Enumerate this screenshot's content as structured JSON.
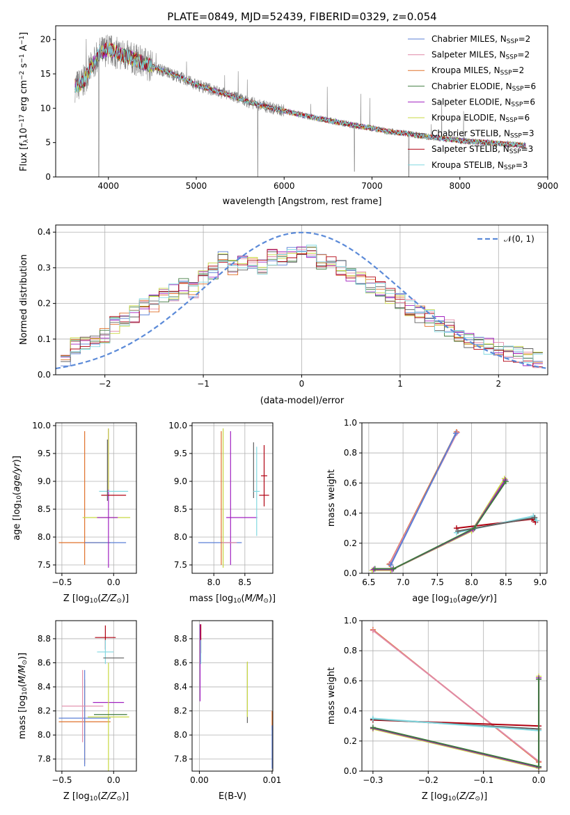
{
  "title": "PLATE=0849, MJD=52439, FIBERID=0329, z=0.054",
  "colors": {
    "chabrier_miles": "#5b7fd6",
    "salpeter_miles": "#e08aa8",
    "kroupa_miles": "#e0702a",
    "chabrier_elodie": "#3f7a3f",
    "salpeter_elodie": "#a020c0",
    "kroupa_elodie": "#c8d840",
    "chabrier_stelib": "#606060",
    "salpeter_stelib": "#b00010",
    "kroupa_stelib": "#80d8e0",
    "data": "#808080",
    "normal": "#5b8ad8"
  },
  "chart_data": [
    {
      "type": "line",
      "title": "PLATE=0849, MJD=52439, FIBERID=0329, z=0.054",
      "xlabel": "wavelength [Angstrom, rest frame]",
      "ylabel": "Flux [fλ10⁻¹⁷ erg cm⁻² s⁻¹ A⁻¹]",
      "xlim": [
        3400,
        9000
      ],
      "ylim": [
        0,
        22
      ],
      "xticks": [
        4000,
        5000,
        6000,
        7000,
        8000,
        9000
      ],
      "yticks": [
        0,
        5,
        10,
        15,
        20
      ],
      "grid": false,
      "legend_position": "top-right",
      "legend": [
        "Chabrier MILES, N_SSP=2",
        "Salpeter MILES, N_SSP=2",
        "Kroupa MILES, N_SSP=2",
        "Chabrier ELODIE, N_SSP=6",
        "Salpeter ELODIE, N_SSP=6",
        "Kroupa ELODIE, N_SSP=6",
        "Chabrier STELIB, N_SSP=3",
        "Salpeter STELIB, N_SSP=3",
        "Kroupa STELIB, N_SSP=3"
      ],
      "continuum": {
        "x": [
          3620,
          3700,
          3800,
          3900,
          4000,
          4100,
          4200,
          4400,
          4600,
          4800,
          5000,
          5200,
          5400,
          5600,
          5800,
          6000,
          6200,
          6400,
          6600,
          6800,
          7000,
          7200,
          7400,
          7600,
          7800,
          8000,
          8200,
          8400,
          8600,
          8750
        ],
        "y": [
          13.2,
          13.6,
          15.8,
          18.0,
          18.6,
          18.0,
          17.6,
          16.6,
          15.6,
          14.6,
          13.4,
          12.6,
          11.8,
          10.9,
          10.2,
          9.6,
          9.0,
          8.5,
          8.0,
          7.5,
          7.1,
          6.6,
          6.3,
          5.9,
          5.6,
          5.3,
          5.1,
          4.9,
          4.7,
          4.6
        ]
      },
      "absorption_dips": [
        {
          "x": 3890,
          "y": 0
        },
        {
          "x": 5700,
          "y": 0
        },
        {
          "x": 6800,
          "y": 0.8
        },
        {
          "x": 7420,
          "y": 0
        }
      ]
    },
    {
      "type": "line",
      "xlabel": "(data-model)/error",
      "ylabel": "Normed distribution",
      "xlim": [
        -2.5,
        2.5
      ],
      "ylim": [
        0,
        0.42
      ],
      "xticks": [
        -2,
        -1,
        0,
        1,
        2
      ],
      "yticks": [
        0.0,
        0.1,
        0.2,
        0.3,
        0.4
      ],
      "grid": true,
      "legend_position": "top-right",
      "legend": [
        "N(0,1)"
      ],
      "histogram_centers": [
        -2.4,
        -2.3,
        -2.2,
        -2.1,
        -2.0,
        -1.9,
        -1.8,
        -1.7,
        -1.6,
        -1.5,
        -1.4,
        -1.3,
        -1.2,
        -1.1,
        -1.0,
        -0.9,
        -0.8,
        -0.7,
        -0.6,
        -0.5,
        -0.4,
        -0.3,
        -0.2,
        -0.1,
        0.0,
        0.1,
        0.2,
        0.3,
        0.4,
        0.5,
        0.6,
        0.7,
        0.8,
        0.9,
        1.0,
        1.1,
        1.2,
        1.3,
        1.4,
        1.5,
        1.6,
        1.7,
        1.8,
        1.9,
        2.0,
        2.1,
        2.2,
        2.3,
        2.4
      ],
      "histogram_mean": [
        0.05,
        0.08,
        0.09,
        0.1,
        0.11,
        0.14,
        0.16,
        0.17,
        0.19,
        0.2,
        0.22,
        0.23,
        0.25,
        0.24,
        0.27,
        0.29,
        0.33,
        0.3,
        0.31,
        0.32,
        0.3,
        0.33,
        0.32,
        0.34,
        0.36,
        0.34,
        0.32,
        0.33,
        0.3,
        0.28,
        0.27,
        0.25,
        0.24,
        0.22,
        0.21,
        0.19,
        0.17,
        0.16,
        0.14,
        0.13,
        0.11,
        0.1,
        0.09,
        0.08,
        0.07,
        0.06,
        0.06,
        0.05,
        0.04
      ],
      "histogram_spread": 0.025,
      "normal_curve": {
        "mu": 0,
        "sigma": 1
      }
    },
    {
      "type": "scatter",
      "xlabel": "Z [log10(Z/Z⊙)]",
      "ylabel": "age [log10(age/yr)]",
      "xlim": [
        -0.56,
        0.22
      ],
      "ylim": [
        7.35,
        10.05
      ],
      "xticks": [
        -0.5,
        0.0
      ],
      "yticks": [
        7.5,
        8.0,
        8.5,
        9.0,
        9.5,
        10.0
      ],
      "grid": true,
      "errorbars": [
        {
          "x": -0.28,
          "y": 7.9,
          "xerr": 0.25,
          "yerr": 0.0,
          "color": "kroupa_miles"
        },
        {
          "x": -0.28,
          "y": 8.7,
          "xerr": 0.0,
          "yerr": 1.2,
          "color": "kroupa_miles"
        },
        {
          "x": -0.08,
          "y": 7.9,
          "xerr": 0.2,
          "yerr": 0.0,
          "color": "chabrier_miles"
        },
        {
          "x": -0.07,
          "y": 8.35,
          "xerr": 0.23,
          "yerr": 0.0,
          "color": "kroupa_elodie"
        },
        {
          "x": -0.06,
          "y": 8.35,
          "xerr": 0.1,
          "yerr": 0.0,
          "color": "salpeter_elodie"
        },
        {
          "x": -0.05,
          "y": 8.7,
          "xerr": 0.0,
          "yerr": 1.25,
          "color": "salpeter_elodie"
        },
        {
          "x": 0.0,
          "y": 8.82,
          "xerr": 0.14,
          "yerr": 0.0,
          "color": "kroupa_stelib"
        },
        {
          "x": 0.0,
          "y": 8.75,
          "xerr": 0.12,
          "yerr": 0.0,
          "color": "salpeter_stelib"
        },
        {
          "x": -0.06,
          "y": 9.2,
          "xerr": 0.0,
          "yerr": 0.55,
          "color": "chabrier_stelib"
        },
        {
          "x": -0.05,
          "y": 9.4,
          "xerr": 0.0,
          "yerr": 0.55,
          "color": "kroupa_elodie"
        }
      ]
    },
    {
      "type": "scatter",
      "xlabel": "mass [log10(M/M⊙)]",
      "xlim": [
        7.65,
        8.95
      ],
      "ylim": [
        7.35,
        10.05
      ],
      "xticks": [
        8.0,
        8.5
      ],
      "yticks": [
        7.5,
        8.0,
        8.5,
        9.0,
        9.5,
        10.0
      ],
      "grid": true,
      "errorbars": [
        {
          "x": 8.1,
          "y": 7.9,
          "xerr": 0.35,
          "yerr": 0.0,
          "color": "chabrier_miles"
        },
        {
          "x": 8.12,
          "y": 8.7,
          "xerr": 0.0,
          "yerr": 1.2,
          "color": "kroupa_miles"
        },
        {
          "x": 8.15,
          "y": 8.7,
          "xerr": 0.0,
          "yerr": 1.25,
          "color": "kroupa_elodie"
        },
        {
          "x": 8.27,
          "y": 8.7,
          "xerr": 0.0,
          "yerr": 1.2,
          "color": "salpeter_elodie"
        },
        {
          "x": 8.45,
          "y": 8.35,
          "xerr": 0.25,
          "yerr": 0.0,
          "color": "salpeter_elodie"
        },
        {
          "x": 8.64,
          "y": 9.2,
          "xerr": 0.0,
          "yerr": 0.5,
          "color": "chabrier_stelib"
        },
        {
          "x": 8.69,
          "y": 8.82,
          "xerr": 0.05,
          "yerr": 0.8,
          "color": "kroupa_stelib"
        },
        {
          "x": 8.81,
          "y": 9.1,
          "xerr": 0.05,
          "yerr": 0.55,
          "color": "salpeter_stelib"
        },
        {
          "x": 8.81,
          "y": 8.75,
          "xerr": 0.08,
          "yerr": 0.0,
          "color": "salpeter_stelib"
        },
        {
          "x": 8.25,
          "y": 7.9,
          "xerr": 0.12,
          "yerr": 0.0,
          "color": "salpeter_miles"
        }
      ]
    },
    {
      "type": "line",
      "xlabel": "age [log10(age/yr)]",
      "ylabel": "mass weight",
      "xlim": [
        6.4,
        9.1
      ],
      "ylim": [
        0.0,
        1.0
      ],
      "xticks": [
        6.5,
        7.0,
        7.5,
        8.0,
        8.5,
        9.0
      ],
      "yticks": [
        0.0,
        0.2,
        0.4,
        0.6,
        0.8,
        1.0
      ],
      "grid": true,
      "series": [
        {
          "color": "kroupa_miles",
          "x": [
            6.8,
            7.78
          ],
          "y": [
            0.06,
            0.94
          ]
        },
        {
          "color": "salpeter_miles",
          "x": [
            6.81,
            7.79
          ],
          "y": [
            0.065,
            0.935
          ]
        },
        {
          "color": "chabrier_miles",
          "x": [
            6.82,
            7.77
          ],
          "y": [
            0.055,
            0.93
          ]
        },
        {
          "color": "salpeter_stelib",
          "x": [
            7.78,
            8.88,
            8.93
          ],
          "y": [
            0.3,
            0.36,
            0.34
          ]
        },
        {
          "color": "kroupa_stelib",
          "x": [
            7.78,
            8.9,
            8.95
          ],
          "y": [
            0.27,
            0.38,
            0.35
          ]
        },
        {
          "color": "chabrier_stelib",
          "x": [
            7.8,
            8.92
          ],
          "y": [
            0.28,
            0.37
          ]
        },
        {
          "color": "kroupa_elodie",
          "x": [
            6.55,
            6.82,
            8.0,
            8.48
          ],
          "y": [
            0.02,
            0.02,
            0.28,
            0.63
          ]
        },
        {
          "color": "salpeter_elodie",
          "x": [
            6.57,
            6.84,
            8.02,
            8.49
          ],
          "y": [
            0.025,
            0.025,
            0.29,
            0.62
          ]
        },
        {
          "color": "chabrier_elodie",
          "x": [
            6.59,
            6.86,
            8.04,
            8.5
          ],
          "y": [
            0.03,
            0.03,
            0.3,
            0.61
          ]
        }
      ]
    },
    {
      "type": "scatter",
      "xlabel": "Z [log10(Z/Z⊙)]",
      "ylabel": "mass [log10(M/M⊙)]",
      "xlim": [
        -0.56,
        0.22
      ],
      "ylim": [
        7.7,
        8.95
      ],
      "xticks": [
        -0.5,
        0.0
      ],
      "yticks": [
        7.8,
        8.0,
        8.2,
        8.4,
        8.6,
        8.8
      ],
      "grid": true,
      "errorbars": [
        {
          "x": -0.28,
          "y": 8.11,
          "xerr": 0.25,
          "yerr": 0.35,
          "color": "kroupa_miles"
        },
        {
          "x": -0.28,
          "y": 8.14,
          "xerr": 0.25,
          "yerr": 0.4,
          "color": "chabrier_miles"
        },
        {
          "x": -0.3,
          "y": 8.24,
          "xerr": 0.2,
          "yerr": 0.3,
          "color": "salpeter_miles"
        },
        {
          "x": -0.08,
          "y": 8.81,
          "xerr": 0.1,
          "yerr": 0.1,
          "color": "salpeter_stelib"
        },
        {
          "x": -0.08,
          "y": 8.69,
          "xerr": 0.08,
          "yerr": 0.1,
          "color": "kroupa_stelib"
        },
        {
          "x": 0.0,
          "y": 8.64,
          "xerr": 0.1,
          "yerr": 0.0,
          "color": "chabrier_stelib"
        },
        {
          "x": -0.05,
          "y": 8.27,
          "xerr": 0.15,
          "yerr": 0.0,
          "color": "salpeter_elodie"
        },
        {
          "x": -0.05,
          "y": 8.15,
          "xerr": 0.2,
          "yerr": 0.45,
          "color": "kroupa_elodie"
        },
        {
          "x": -0.03,
          "y": 8.17,
          "xerr": 0.16,
          "yerr": 0.0,
          "color": "chabrier_elodie"
        }
      ]
    },
    {
      "type": "scatter",
      "xlabel": "E(B-V)",
      "xlim": [
        -0.001,
        0.0101
      ],
      "ylim": [
        7.7,
        8.95
      ],
      "xticks": [
        0.0,
        0.01
      ],
      "xticklabels": [
        "0.00",
        "0.01"
      ],
      "yticks": [
        7.8,
        8.0,
        8.2,
        8.4,
        8.6,
        8.8
      ],
      "grid": true,
      "errorbars": [
        {
          "x": 0.0001,
          "y": 8.6,
          "xerr": 0.0,
          "yerr": 0.32,
          "color": "salpeter_elodie"
        },
        {
          "x": 0.0002,
          "y": 8.8,
          "xerr": 0.0,
          "yerr": 0.12,
          "color": "salpeter_stelib"
        },
        {
          "x": 0.0002,
          "y": 8.69,
          "xerr": 0.0,
          "yerr": 0.1,
          "color": "kroupa_stelib"
        },
        {
          "x": 0.0066,
          "y": 8.35,
          "xerr": 0.0,
          "yerr": 0.25,
          "color": "chabrier_stelib"
        },
        {
          "x": 0.0066,
          "y": 8.38,
          "xerr": 0.0,
          "yerr": 0.23,
          "color": "kroupa_elodie"
        },
        {
          "x": 0.01,
          "y": 8.12,
          "xerr": 0.0,
          "yerr": 0.08,
          "color": "kroupa_miles"
        },
        {
          "x": 0.01,
          "y": 7.9,
          "xerr": 0.0,
          "yerr": 0.18,
          "color": "chabrier_miles"
        }
      ]
    },
    {
      "type": "line",
      "xlabel": "Z [log10(Z/Z⊙)]",
      "ylabel": "mass weight",
      "xlim": [
        -0.32,
        0.015
      ],
      "ylim": [
        0.0,
        1.0
      ],
      "xticks": [
        -0.3,
        -0.2,
        -0.1,
        0.0
      ],
      "xticklabels": [
        "−0.3",
        "−0.2",
        "−0.1",
        "0.0"
      ],
      "yticks": [
        0.0,
        0.2,
        0.4,
        0.6,
        0.8,
        1.0
      ],
      "grid": true,
      "series": [
        {
          "color": "kroupa_miles",
          "x": [
            -0.3,
            0.0
          ],
          "y": [
            0.94,
            0.06
          ]
        },
        {
          "color": "salpeter_miles",
          "x": [
            -0.3,
            0.0
          ],
          "y": [
            0.935,
            0.065
          ]
        },
        {
          "color": "salpeter_stelib",
          "x": [
            -0.3,
            0.0
          ],
          "y": [
            0.34,
            0.3
          ]
        },
        {
          "color": "chabrier_stelib",
          "x": [
            -0.3,
            0.0
          ],
          "y": [
            0.345,
            0.28
          ]
        },
        {
          "color": "kroupa_stelib",
          "x": [
            -0.3,
            0.0
          ],
          "y": [
            0.35,
            0.27
          ]
        },
        {
          "color": "kroupa_elodie",
          "x": [
            -0.3,
            0.0,
            0.0
          ],
          "y": [
            0.28,
            0.02,
            0.63
          ]
        },
        {
          "color": "salpeter_elodie",
          "x": [
            -0.3,
            0.0,
            0.0
          ],
          "y": [
            0.285,
            0.025,
            0.62
          ]
        },
        {
          "color": "chabrier_elodie",
          "x": [
            -0.3,
            0.0,
            0.0
          ],
          "y": [
            0.29,
            0.03,
            0.61
          ]
        }
      ]
    }
  ]
}
